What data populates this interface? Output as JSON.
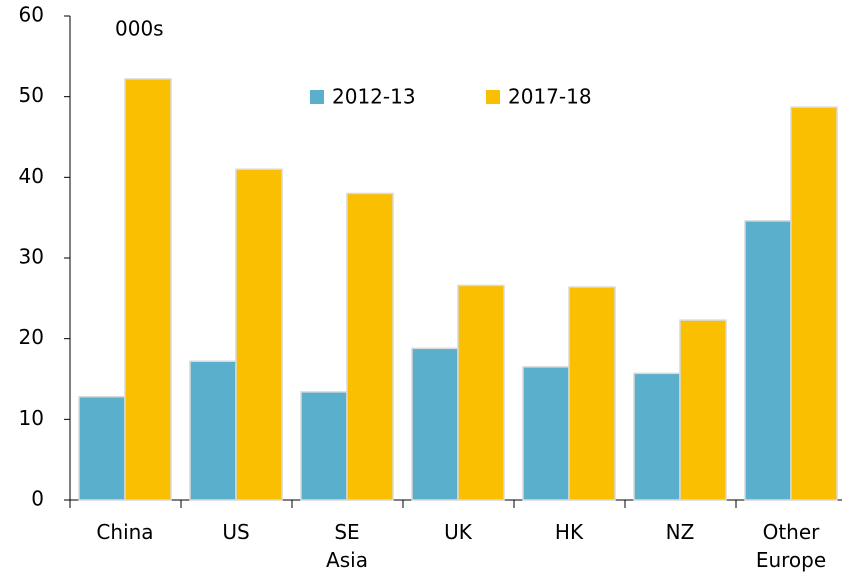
{
  "chart_data": {
    "type": "bar",
    "annotation": "000s",
    "categories": [
      "China",
      "US",
      "SE\nAsia",
      "UK",
      "HK",
      "NZ",
      "Other\nEurope"
    ],
    "series": [
      {
        "name": "2012-13",
        "color": "#5aafcc",
        "values": [
          12.8,
          17.2,
          13.4,
          18.8,
          16.5,
          15.7,
          34.6
        ]
      },
      {
        "name": "2017-18",
        "color": "#f9bf00",
        "values": [
          52.2,
          41.0,
          38.0,
          26.6,
          26.4,
          22.3,
          48.7
        ]
      }
    ],
    "ylim": [
      0,
      60
    ],
    "yticks": [
      0,
      10,
      20,
      30,
      40,
      50,
      60
    ],
    "grid": false
  }
}
